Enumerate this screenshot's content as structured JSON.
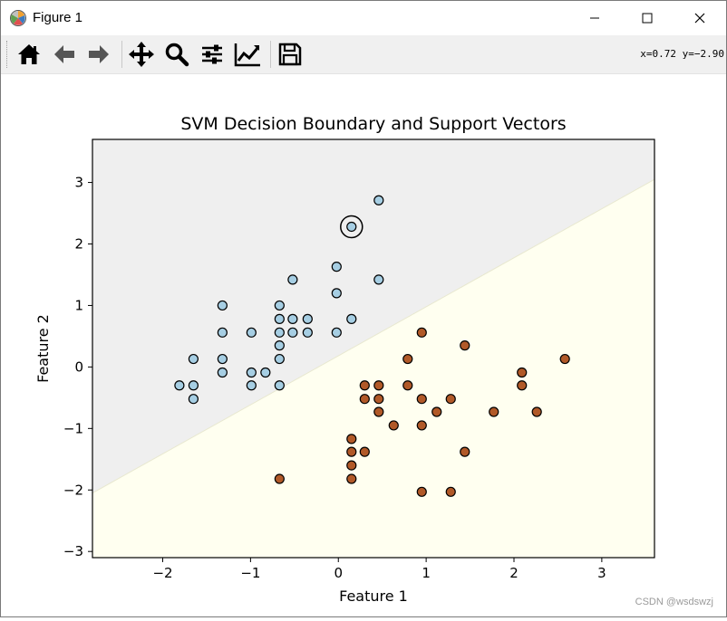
{
  "window": {
    "title": "Figure 1",
    "controls": {
      "minimize": "minimize",
      "maximize": "maximize",
      "close": "close"
    }
  },
  "toolbar": {
    "buttons": [
      {
        "name": "home",
        "tooltip": "Reset original view",
        "icon": "home-icon"
      },
      {
        "name": "back",
        "tooltip": "Back to previous view",
        "icon": "arrow-left-icon"
      },
      {
        "name": "forward",
        "tooltip": "Forward to next view",
        "icon": "arrow-right-icon"
      },
      {
        "name": "pan",
        "tooltip": "Pan axes",
        "icon": "move-icon"
      },
      {
        "name": "zoom",
        "tooltip": "Zoom to rectangle",
        "icon": "magnifier-icon"
      },
      {
        "name": "subplots",
        "tooltip": "Configure subplots",
        "icon": "sliders-icon"
      },
      {
        "name": "customize",
        "tooltip": "Edit axis, curve and image parameters",
        "icon": "line-chart-icon"
      },
      {
        "name": "save",
        "tooltip": "Save the figure",
        "icon": "floppy-disk-icon"
      }
    ],
    "cursor_readout": "x=0.72 y=−2.90"
  },
  "watermark": "CSDN @wsdswzj",
  "chart_data": {
    "type": "scatter",
    "title": "SVM Decision Boundary and Support Vectors",
    "xlabel": "Feature 1",
    "ylabel": "Feature 2",
    "xlim": [
      -2.8,
      3.6
    ],
    "ylim": [
      -3.1,
      3.7
    ],
    "xticks": [
      -2,
      -1,
      0,
      1,
      2,
      3
    ],
    "yticks": [
      -3,
      -2,
      -1,
      0,
      1,
      2,
      3
    ],
    "xtick_labels": [
      "−2",
      "−1",
      "0",
      "1",
      "2",
      "3"
    ],
    "ytick_labels": [
      "−3",
      "−2",
      "−1",
      "0",
      "1",
      "2",
      "3"
    ],
    "grid": false,
    "decision_boundary": {
      "points": [
        [
          -2.8,
          -2.05
        ],
        [
          3.6,
          3.05
        ]
      ]
    },
    "region_colors": {
      "upper": "#efefef",
      "lower": "#fffff0"
    },
    "series": [
      {
        "class": 0,
        "color": "#a6cee3",
        "points": [
          [
            0.46,
            2.71
          ],
          [
            0.15,
            2.28
          ],
          [
            -0.52,
            1.42
          ],
          [
            0.46,
            1.42
          ],
          [
            -0.02,
            1.63
          ],
          [
            -0.02,
            1.2
          ],
          [
            -1.32,
            1.0
          ],
          [
            -0.67,
            1.0
          ],
          [
            -0.67,
            0.78
          ],
          [
            -0.52,
            0.78
          ],
          [
            -0.35,
            0.78
          ],
          [
            0.15,
            0.78
          ],
          [
            -1.32,
            0.56
          ],
          [
            -0.99,
            0.56
          ],
          [
            -0.67,
            0.56
          ],
          [
            -0.52,
            0.56
          ],
          [
            -0.35,
            0.56
          ],
          [
            -0.02,
            0.56
          ],
          [
            -0.67,
            0.35
          ],
          [
            -1.65,
            0.13
          ],
          [
            -1.32,
            0.13
          ],
          [
            -0.67,
            0.13
          ],
          [
            -1.32,
            -0.09
          ],
          [
            -0.99,
            -0.09
          ],
          [
            -0.83,
            -0.09
          ],
          [
            -1.81,
            -0.3
          ],
          [
            -1.65,
            -0.3
          ],
          [
            -0.99,
            -0.3
          ],
          [
            -0.67,
            -0.3
          ],
          [
            -1.65,
            -0.52
          ]
        ]
      },
      {
        "class": 1,
        "color": "#b15928",
        "points": [
          [
            0.95,
            0.56
          ],
          [
            1.44,
            0.35
          ],
          [
            0.79,
            0.13
          ],
          [
            2.58,
            0.13
          ],
          [
            2.09,
            -0.09
          ],
          [
            0.3,
            -0.3
          ],
          [
            0.46,
            -0.3
          ],
          [
            0.79,
            -0.3
          ],
          [
            2.09,
            -0.3
          ],
          [
            0.3,
            -0.52
          ],
          [
            0.46,
            -0.52
          ],
          [
            0.95,
            -0.52
          ],
          [
            1.28,
            -0.52
          ],
          [
            0.46,
            -0.73
          ],
          [
            1.12,
            -0.73
          ],
          [
            1.77,
            -0.73
          ],
          [
            2.26,
            -0.73
          ],
          [
            0.63,
            -0.95
          ],
          [
            0.95,
            -0.95
          ],
          [
            0.15,
            -1.17
          ],
          [
            0.15,
            -1.38
          ],
          [
            0.3,
            -1.38
          ],
          [
            1.44,
            -1.38
          ],
          [
            0.15,
            -1.6
          ],
          [
            -0.67,
            -1.82
          ],
          [
            0.15,
            -1.82
          ],
          [
            0.95,
            -2.03
          ],
          [
            1.28,
            -2.03
          ]
        ]
      }
    ],
    "support_vectors": [
      [
        0.15,
        2.28
      ]
    ]
  }
}
